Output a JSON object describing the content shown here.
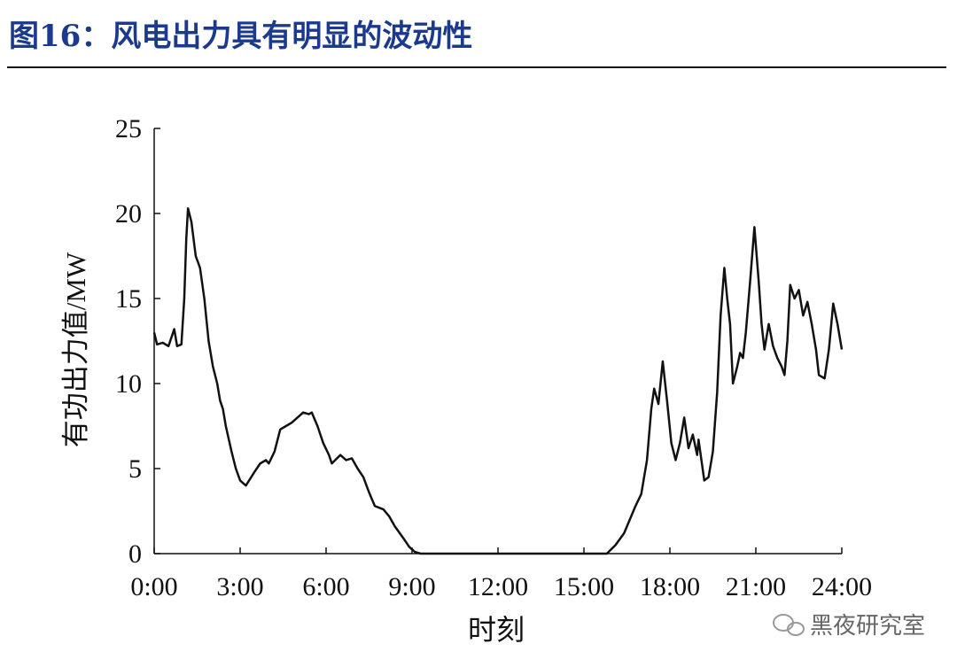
{
  "chart_data": {
    "type": "line",
    "title": "图16：风电出力具有明显的波动性",
    "x_label": "时刻",
    "y_label": "有功出力值/MW",
    "watermark": "黑夜研究室",
    "color": "#111111",
    "xlim": [
      0,
      24
    ],
    "ylim": [
      0,
      25
    ],
    "xticks": [
      {
        "value": 0,
        "label": "0:00"
      },
      {
        "value": 3,
        "label": "3:00"
      },
      {
        "value": 6,
        "label": "6:00"
      },
      {
        "value": 9,
        "label": "9:00"
      },
      {
        "value": 12,
        "label": "12:00"
      },
      {
        "value": 15,
        "label": "15:00"
      },
      {
        "value": 18,
        "label": "18:00"
      },
      {
        "value": 21,
        "label": "21:00"
      },
      {
        "value": 24,
        "label": "24:00"
      }
    ],
    "yticks": [
      0,
      5,
      10,
      15,
      20,
      25
    ],
    "x": [
      0,
      0.1,
      0.3,
      0.5,
      0.7,
      0.8,
      0.95,
      1.05,
      1.12,
      1.18,
      1.3,
      1.45,
      1.6,
      1.75,
      1.9,
      2.05,
      2.2,
      2.3,
      2.4,
      2.5,
      2.7,
      2.85,
      3.0,
      3.2,
      3.5,
      3.7,
      3.9,
      4.0,
      4.2,
      4.4,
      4.6,
      4.8,
      5.0,
      5.2,
      5.4,
      5.5,
      5.7,
      5.9,
      6.1,
      6.2,
      6.5,
      6.7,
      6.9,
      7.1,
      7.3,
      7.5,
      7.7,
      8.0,
      8.2,
      8.4,
      8.7,
      8.9,
      9.1,
      9.3,
      15.8,
      16.1,
      16.4,
      16.6,
      16.8,
      17.0,
      17.2,
      17.35,
      17.45,
      17.6,
      17.75,
      17.9,
      18.05,
      18.2,
      18.35,
      18.5,
      18.65,
      18.8,
      18.95,
      19.0,
      19.2,
      19.35,
      19.5,
      19.65,
      19.77,
      19.9,
      20.0,
      20.1,
      20.2,
      20.35,
      20.45,
      20.55,
      20.65,
      20.8,
      20.95,
      21.1,
      21.2,
      21.3,
      21.45,
      21.6,
      21.75,
      21.9,
      22.0,
      22.1,
      22.2,
      22.35,
      22.5,
      22.65,
      22.8,
      22.95,
      23.1,
      23.2,
      23.4,
      23.55,
      23.7,
      23.85,
      24.0
    ],
    "values": [
      13,
      12.3,
      12.4,
      12.2,
      13.2,
      12.2,
      12.3,
      15,
      18.5,
      20.3,
      19.5,
      17.5,
      16.8,
      15,
      12.5,
      11,
      10,
      9,
      8.5,
      7.5,
      6,
      5,
      4.3,
      4.0,
      4.8,
      5.3,
      5.5,
      5.3,
      6.0,
      7.3,
      7.5,
      7.7,
      8.0,
      8.3,
      8.2,
      8.3,
      7.5,
      6.5,
      5.8,
      5.3,
      5.8,
      5.5,
      5.6,
      5.0,
      4.5,
      3.6,
      2.8,
      2.6,
      2.2,
      1.6,
      0.9,
      0.4,
      0.1,
      0,
      0,
      0.5,
      1.2,
      2.0,
      2.8,
      3.5,
      5.5,
      8.5,
      9.7,
      8.8,
      11.3,
      9,
      6.5,
      5.5,
      6.5,
      8.0,
      6.2,
      7.0,
      5.8,
      6.7,
      4.3,
      4.5,
      6,
      9.5,
      14,
      16.8,
      15,
      13.5,
      10,
      11,
      11.8,
      11.5,
      13,
      16,
      19.2,
      16,
      13.5,
      12,
      13.5,
      12.2,
      11.5,
      11,
      10.5,
      12.5,
      15.8,
      15,
      15.5,
      14,
      14.8,
      13.5,
      12,
      10.5,
      10.3,
      12,
      14.7,
      13.5,
      12
    ]
  }
}
